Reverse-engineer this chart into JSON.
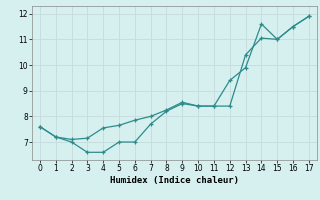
{
  "line1_x": [
    0,
    1,
    2,
    3,
    4,
    5,
    6,
    7,
    8,
    9,
    10,
    11,
    12,
    13,
    14,
    15,
    16,
    17
  ],
  "line1_y": [
    7.6,
    7.2,
    7.0,
    6.6,
    6.6,
    7.0,
    7.0,
    7.7,
    8.2,
    8.5,
    8.4,
    8.4,
    9.4,
    9.9,
    11.6,
    11.0,
    11.5,
    11.9
  ],
  "line2_x": [
    0,
    1,
    2,
    3,
    4,
    5,
    6,
    7,
    8,
    9,
    10,
    11,
    12,
    13,
    14,
    15,
    16,
    17
  ],
  "line2_y": [
    7.6,
    7.2,
    7.1,
    7.15,
    7.55,
    7.65,
    7.85,
    8.0,
    8.25,
    8.55,
    8.4,
    8.4,
    8.4,
    10.4,
    11.05,
    11.0,
    11.5,
    11.9
  ],
  "line_color": "#2e8b8b",
  "bg_color": "#d6f0f0",
  "grid_color": "#c8dede",
  "xlabel": "Humidex (Indice chaleur)",
  "xlim": [
    -0.5,
    17.5
  ],
  "ylim": [
    6.3,
    12.3
  ],
  "xticks": [
    0,
    1,
    2,
    3,
    4,
    5,
    6,
    7,
    8,
    9,
    10,
    11,
    12,
    13,
    14,
    15,
    16,
    17
  ],
  "yticks": [
    7,
    8,
    9,
    10,
    11,
    12
  ]
}
